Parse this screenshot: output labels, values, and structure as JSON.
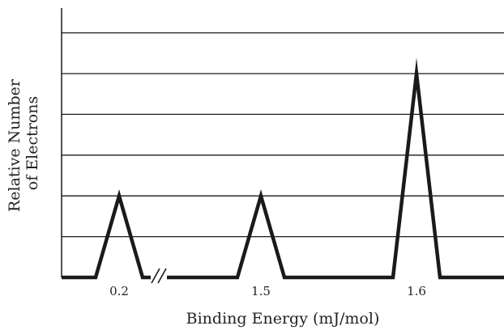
{
  "chart_data": {
    "type": "line",
    "title": "",
    "xlabel": "Binding Energy (mJ/mol)",
    "ylabel_lines": [
      "Relative Number",
      "of Electrons"
    ],
    "y_scale": "relative",
    "ylim": [
      0,
      6
    ],
    "grid": true,
    "axis_break": true,
    "peaks": [
      {
        "x_label": "0.2",
        "height": 2
      },
      {
        "x_label": "1.5",
        "height": 2
      },
      {
        "x_label": "1.6",
        "height": 5
      }
    ]
  }
}
